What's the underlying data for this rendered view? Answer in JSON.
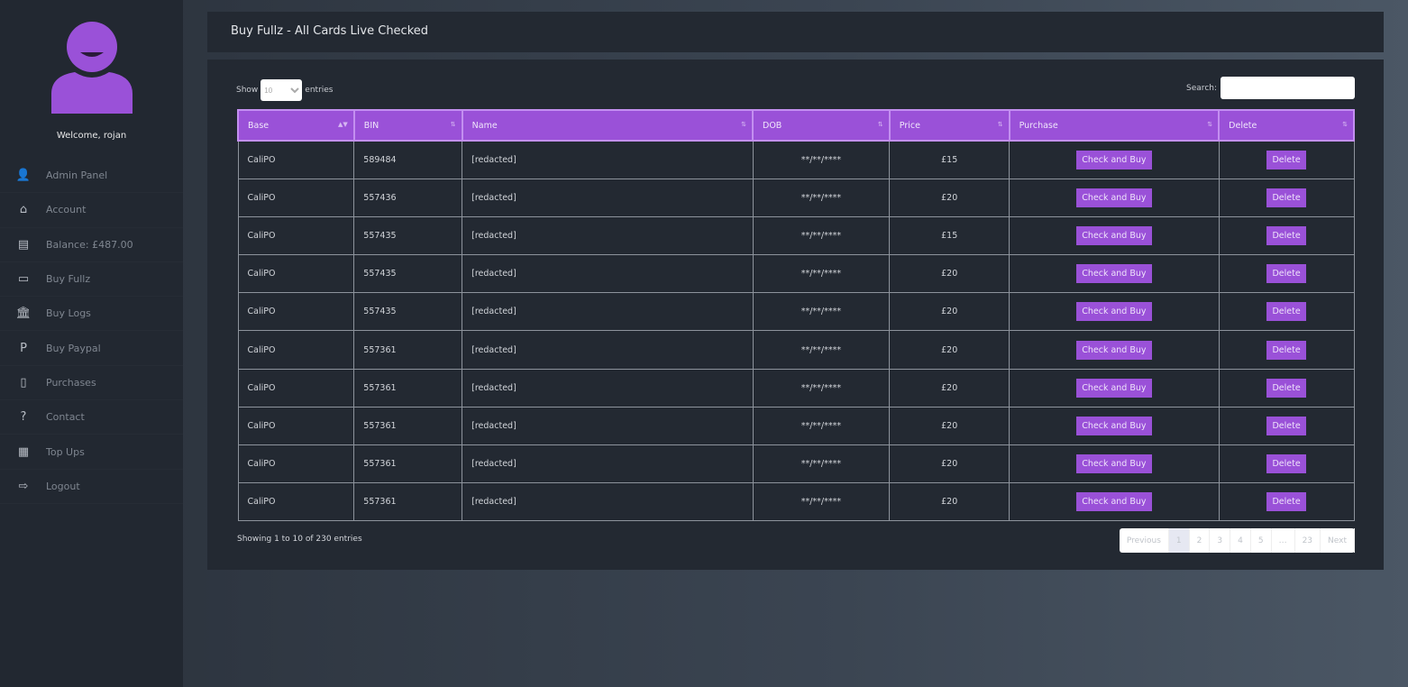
{
  "sidebar": {
    "welcome": "Welcome, rojan",
    "items": [
      {
        "label": "Admin Panel",
        "icon": "user-cog-icon",
        "glyph": "👤"
      },
      {
        "label": "Account",
        "icon": "home-icon",
        "glyph": "⌂"
      },
      {
        "label": "Balance: £487.00",
        "icon": "coins-icon",
        "glyph": "▤"
      },
      {
        "label": "Buy Fullz",
        "icon": "credit-card-icon",
        "glyph": "▭"
      },
      {
        "label": "Buy Logs",
        "icon": "bank-icon",
        "glyph": "🏛"
      },
      {
        "label": "Buy Paypal",
        "icon": "paypal-icon",
        "glyph": "P"
      },
      {
        "label": "Purchases",
        "icon": "invoice-icon",
        "glyph": "▯"
      },
      {
        "label": "Contact",
        "icon": "question-circle-icon",
        "glyph": "?"
      },
      {
        "label": "Top Ups",
        "icon": "receipt-icon",
        "glyph": "▦"
      },
      {
        "label": "Logout",
        "icon": "sign-out-icon",
        "glyph": "⇨"
      }
    ]
  },
  "header": {
    "title": "Buy Fullz - All Cards Live Checked"
  },
  "controls": {
    "show_label": "Show",
    "entries_label": "entries",
    "page_size": "10",
    "search_label": "Search:"
  },
  "table": {
    "columns": [
      "Base",
      "BIN",
      "Name",
      "DOB",
      "Price",
      "Purchase",
      "Delete"
    ],
    "buy_label": "Check and Buy",
    "delete_label": "Delete",
    "rows": [
      {
        "base": "CaliPO",
        "bin": "589484",
        "name": "[redacted]",
        "dob": "**/**/****",
        "price": "£15"
      },
      {
        "base": "CaliPO",
        "bin": "557436",
        "name": "[redacted]",
        "dob": "**/**/****",
        "price": "£20"
      },
      {
        "base": "CaliPO",
        "bin": "557435",
        "name": "[redacted]",
        "dob": "**/**/****",
        "price": "£15"
      },
      {
        "base": "CaliPO",
        "bin": "557435",
        "name": "[redacted]",
        "dob": "**/**/****",
        "price": "£20"
      },
      {
        "base": "CaliPO",
        "bin": "557435",
        "name": "[redacted]",
        "dob": "**/**/****",
        "price": "£20"
      },
      {
        "base": "CaliPO",
        "bin": "557361",
        "name": "[redacted]",
        "dob": "**/**/****",
        "price": "£20"
      },
      {
        "base": "CaliPO",
        "bin": "557361",
        "name": "[redacted]",
        "dob": "**/**/****",
        "price": "£20"
      },
      {
        "base": "CaliPO",
        "bin": "557361",
        "name": "[redacted]",
        "dob": "**/**/****",
        "price": "£20"
      },
      {
        "base": "CaliPO",
        "bin": "557361",
        "name": "[redacted]",
        "dob": "**/**/****",
        "price": "£20"
      },
      {
        "base": "CaliPO",
        "bin": "557361",
        "name": "[redacted]",
        "dob": "**/**/****",
        "price": "£20"
      }
    ]
  },
  "footer": {
    "info": "Showing 1 to 10 of 230 entries",
    "pages": [
      "Previous",
      "1",
      "2",
      "3",
      "4",
      "5",
      "…",
      "23",
      "Next"
    ],
    "active_page": "1"
  },
  "colors": {
    "accent": "#9a51d8",
    "sidebar": "#222831",
    "panel": "#232932"
  }
}
